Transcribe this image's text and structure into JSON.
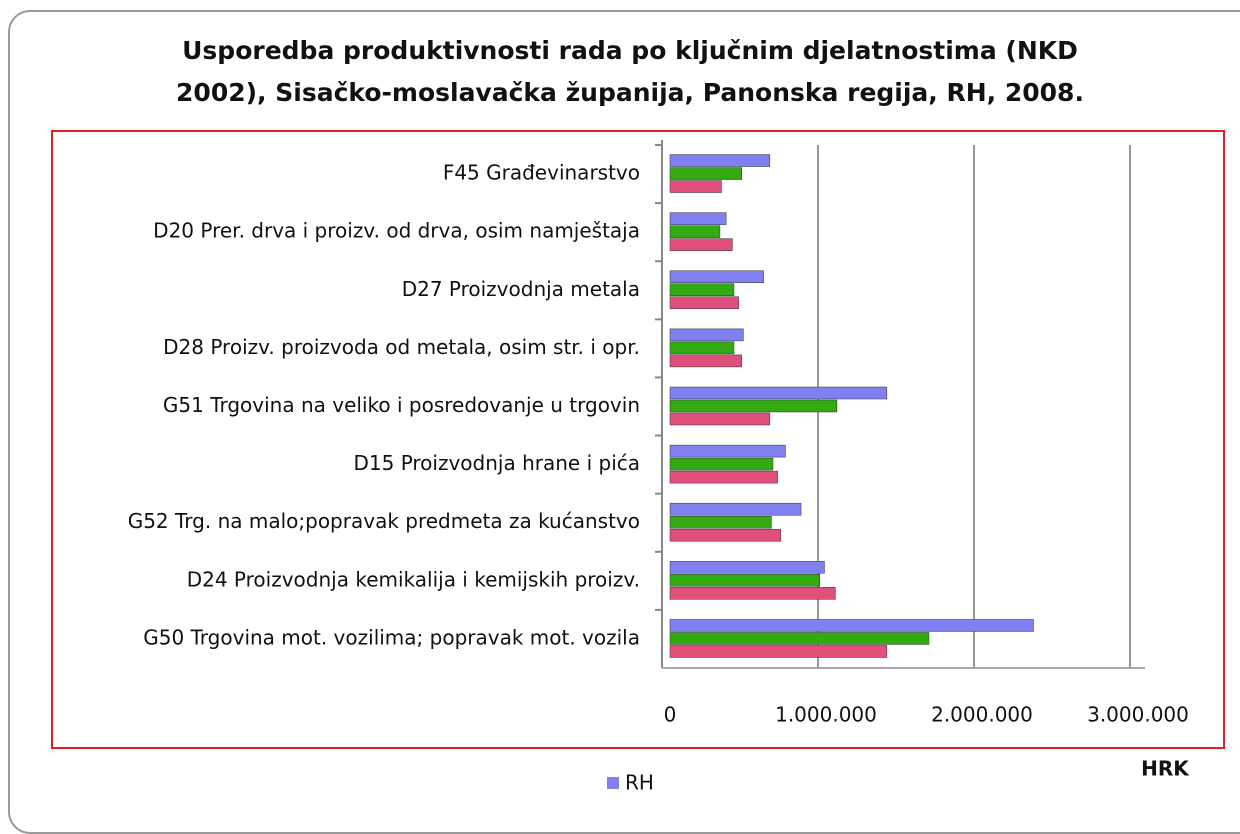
{
  "chart_data": {
    "type": "hbar",
    "title": "Usporedba produktivnosti rada po ključnim djelatnostima (NKD 2002), Sisačko-moslavačka županija, Panonska regija, RH, 2008.",
    "categories": [
      "F45 Građevinarstvo",
      "D20 Prer. drva i proizv. od drva, osim namještaja",
      "D27 Proizvodnja metala",
      "D28 Proizv. proizvoda od metala, osim str. i opr.",
      "G51 Trgovina na veliko i posredovanje u trgovin",
      "D15 Proizvodnja hrane i pića",
      "G52 Trg. na malo;popravak predmeta za kućanstvo",
      "D24 Proizvodnja kemikalija i kemijskih proizv.",
      "G50 Trgovina mot. vozilima; popravak mot. vozila"
    ],
    "series": [
      {
        "name": "RH",
        "color": "#8080f0",
        "values": [
          640000,
          360000,
          600000,
          470000,
          1390000,
          740000,
          840000,
          990000,
          2330000
        ]
      },
      {
        "color": "#33aa11",
        "values": [
          460000,
          320000,
          410000,
          410000,
          1070000,
          660000,
          650000,
          960000,
          1660000
        ]
      },
      {
        "color": "#e0507a",
        "values": [
          330000,
          400000,
          440000,
          460000,
          640000,
          690000,
          710000,
          1060000,
          1390000
        ]
      }
    ],
    "xlim": [
      0,
      3000000
    ],
    "xticks": [
      0,
      {
        "value": 1000000,
        "label": "1.000.000"
      },
      {
        "value": 2000000,
        "label": "2.000.000"
      },
      {
        "value": 3000000,
        "label": "3.000.000"
      }
    ],
    "xlabel": "HRK",
    "grid": true
  }
}
